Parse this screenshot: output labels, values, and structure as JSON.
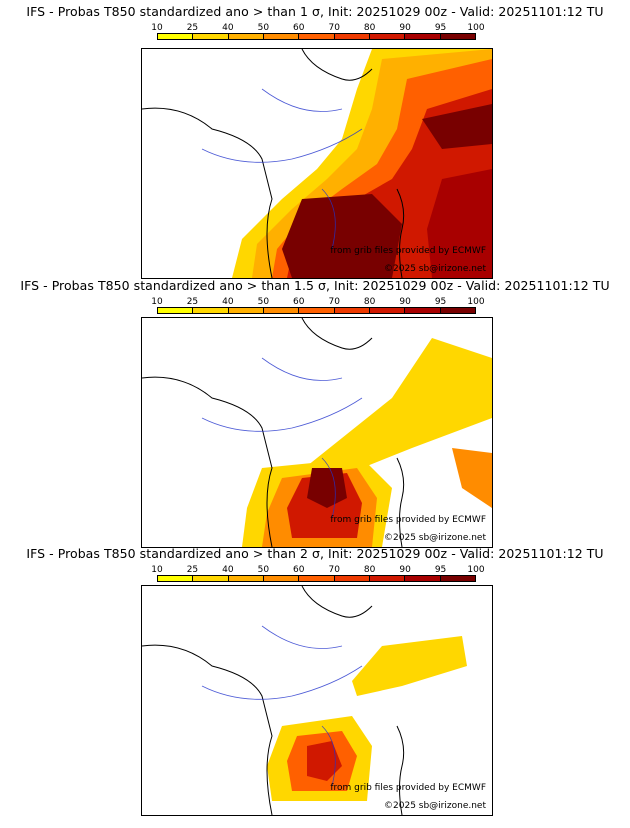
{
  "panels": [
    {
      "title": "IFS - Probas T850  standardized ano > than 1 σ, Init: 20251029 00z - Valid: 20251101:12 TU"
    },
    {
      "title": "IFS - Probas T850  standardized ano > than 1.5 σ, Init: 20251029 00z - Valid: 20251101:12 TU"
    },
    {
      "title": "IFS - Probas T850  standardized ano > than 2 σ, Init: 20251029 00z - Valid: 20251101:12 TU"
    }
  ],
  "colorbar": {
    "ticks": [
      "10",
      "25",
      "40",
      "50",
      "60",
      "70",
      "80",
      "90",
      "95",
      "100"
    ],
    "colors": [
      "#ffff00",
      "#ffd700",
      "#ffb000",
      "#ff8c00",
      "#ff6000",
      "#ee3a00",
      "#d01800",
      "#a80000",
      "#780000"
    ]
  },
  "credits": {
    "source": "from grib files provided by ECMWF",
    "copyright": "©2025 sb@irizone.net"
  }
}
